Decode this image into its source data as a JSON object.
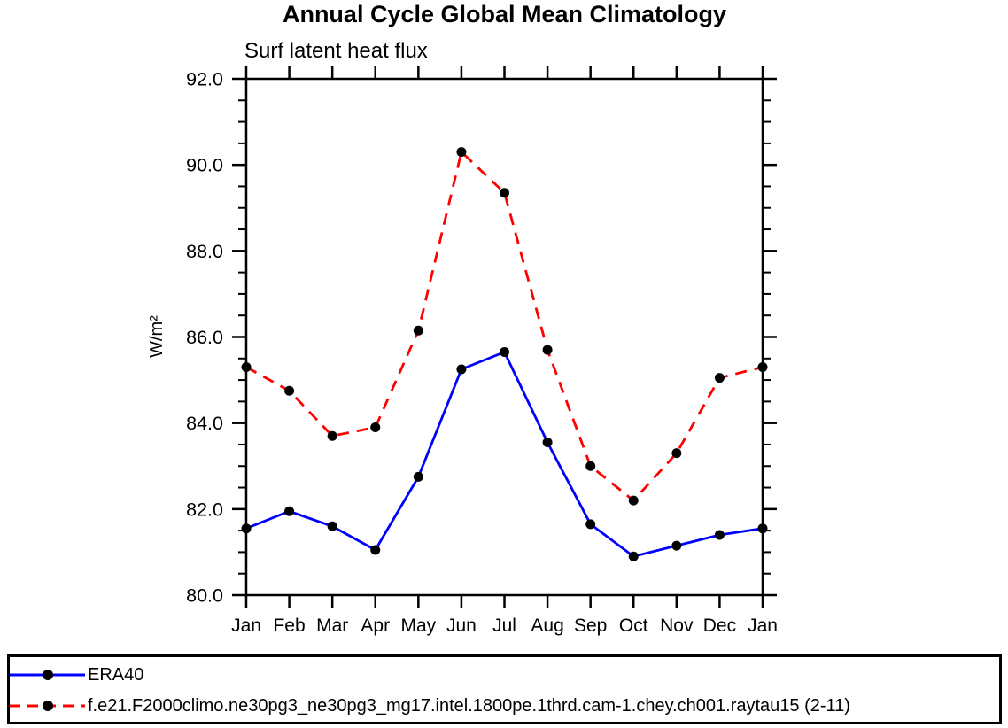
{
  "chart_data": {
    "type": "line",
    "title": "Annual Cycle Global Mean Climatology",
    "subtitle": "Surf latent heat flux",
    "ylabel": "W/m²",
    "categories": [
      "Jan",
      "Feb",
      "Mar",
      "Apr",
      "May",
      "Jun",
      "Jul",
      "Aug",
      "Sep",
      "Oct",
      "Nov",
      "Dec",
      "Jan"
    ],
    "ylim": [
      80.0,
      92.0
    ],
    "y_major_step": 2.0,
    "y_minor_step": 0.5,
    "y_tick_format_decimals": 1,
    "grid": false,
    "legend_position": "bottom-box",
    "axis_color": "#000000",
    "marker_color": "#000000",
    "series": [
      {
        "name": "ERA40",
        "color": "#0000ff",
        "style": "solid",
        "marker": "circle",
        "values": [
          81.55,
          81.95,
          81.6,
          81.05,
          82.75,
          85.25,
          85.65,
          83.55,
          81.65,
          80.9,
          81.15,
          81.4,
          81.55
        ]
      },
      {
        "name": "f.e21.F2000climo.ne30pg3_ne30pg3_mg17.intel.1800pe.1thrd.cam-1.chey.ch001.raytau15 (2-11)",
        "color": "#ff0000",
        "style": "dashed",
        "marker": "circle",
        "values": [
          85.3,
          84.75,
          83.7,
          83.9,
          86.15,
          90.3,
          89.35,
          85.7,
          83.0,
          82.2,
          83.3,
          85.05,
          85.3
        ]
      }
    ]
  }
}
